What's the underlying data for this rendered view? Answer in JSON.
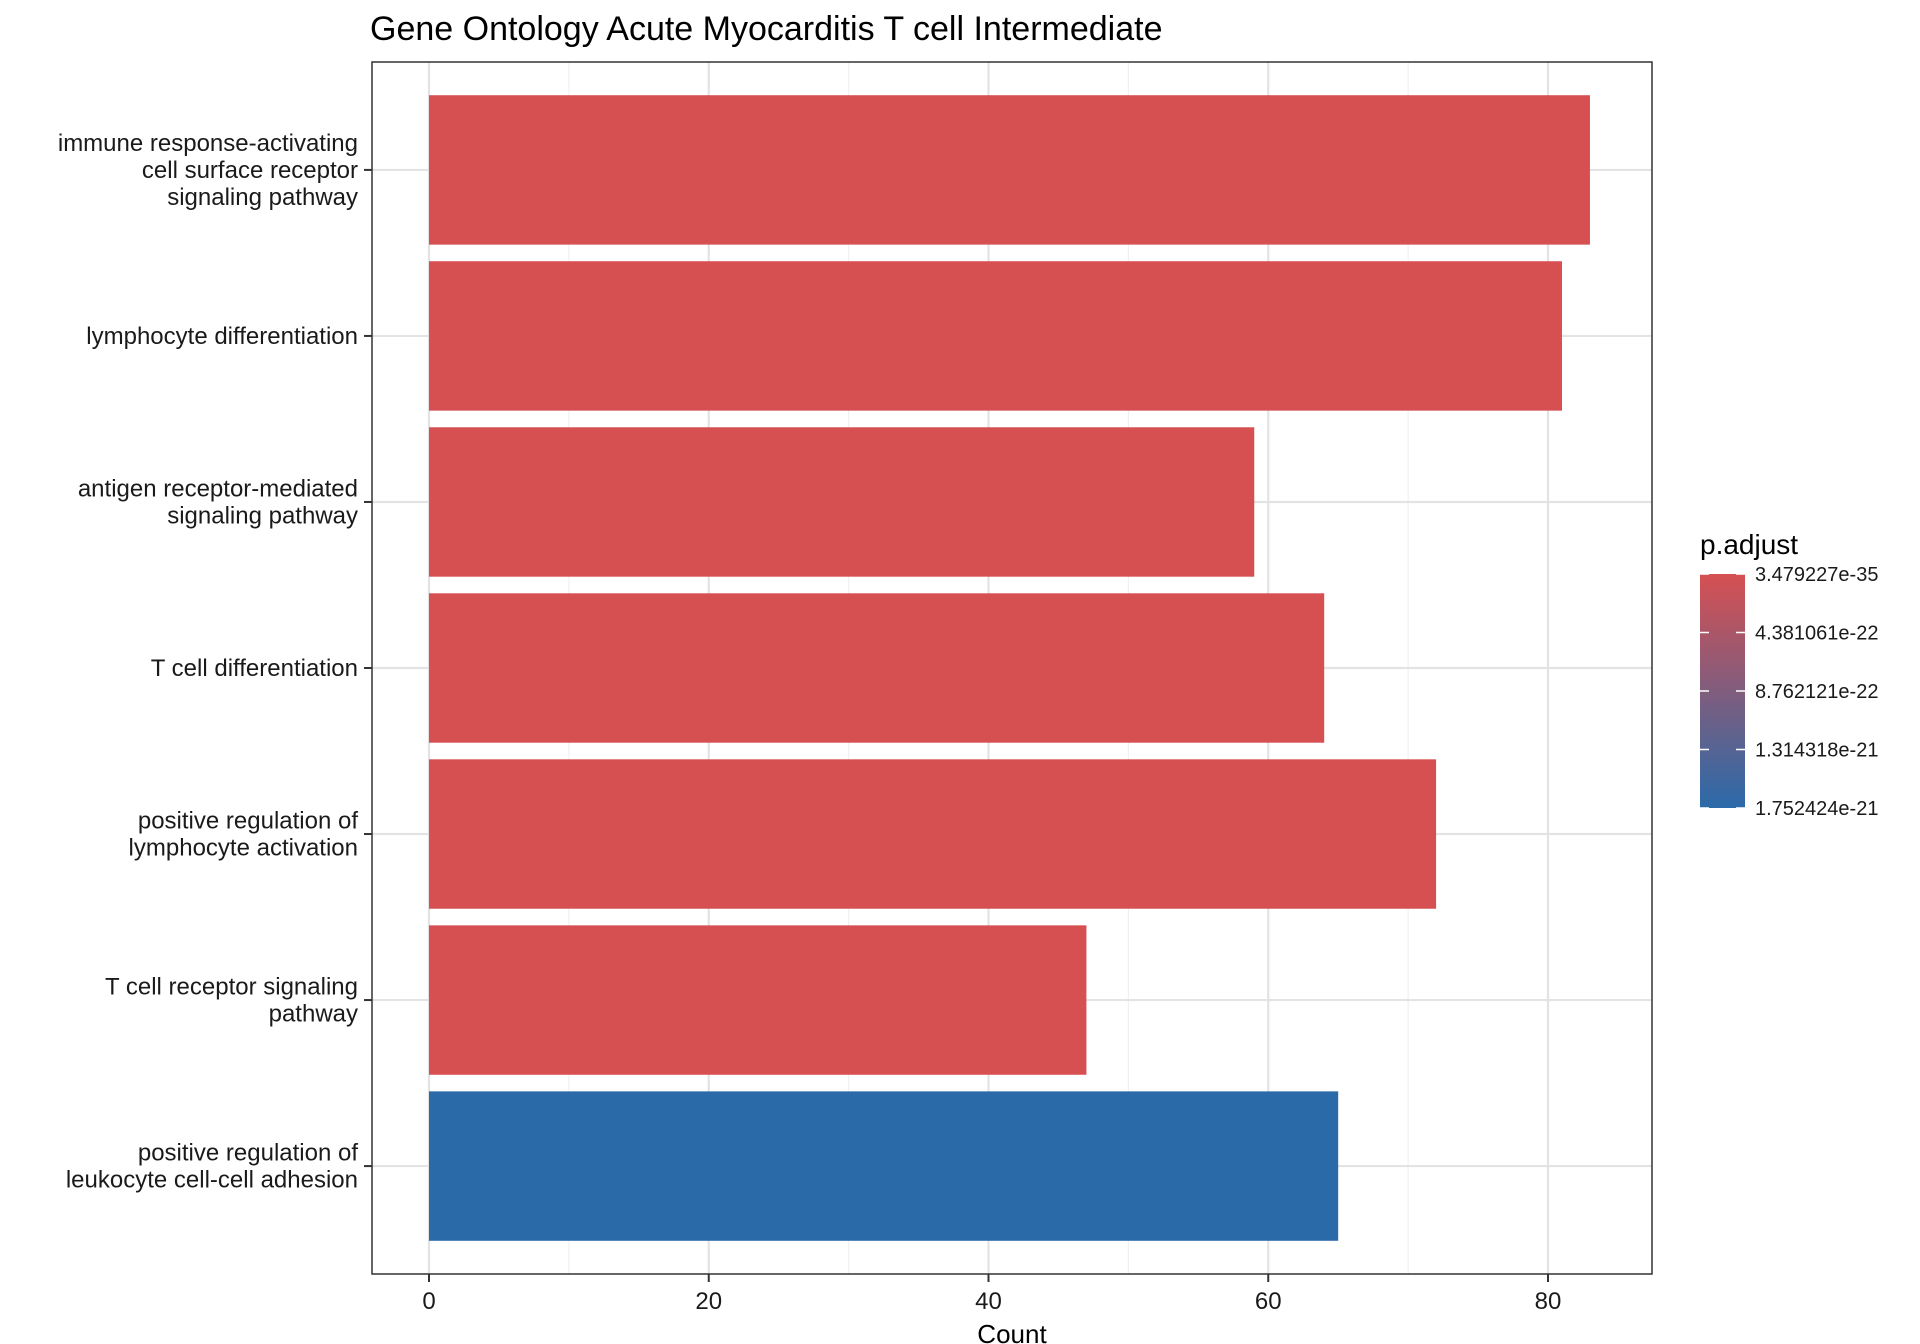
{
  "chart_data": {
    "type": "bar",
    "orientation": "horizontal",
    "title": "Gene Ontology Acute Myocarditis T cell Intermediate",
    "xlabel": "Count",
    "ylabel": "",
    "xlim": [
      0,
      87
    ],
    "x_ticks": [
      "0",
      "20",
      "40",
      "60",
      "80"
    ],
    "grid": true,
    "categories": [
      [
        "immune response-activating",
        "cell surface receptor",
        "signaling pathway"
      ],
      [
        "lymphocyte differentiation"
      ],
      [
        "antigen receptor-mediated",
        "signaling pathway"
      ],
      [
        "T cell differentiation"
      ],
      [
        "positive regulation of",
        "lymphocyte activation"
      ],
      [
        "T cell receptor signaling",
        "pathway"
      ],
      [
        "positive regulation of",
        "leukocyte cell-cell adhesion"
      ]
    ],
    "values": [
      83,
      81,
      59,
      64,
      72,
      47,
      65
    ],
    "p_adjust_fraction": [
      0,
      0,
      0,
      0,
      0,
      0,
      1
    ],
    "legend": {
      "title": "p.adjust",
      "position": "right",
      "labels": [
        "3.479227e-35",
        "4.381061e-22",
        "8.762121e-22",
        "1.314318e-21",
        "1.752424e-21"
      ],
      "color_low": "#d65052",
      "color_high": "#2b6aa9"
    }
  }
}
